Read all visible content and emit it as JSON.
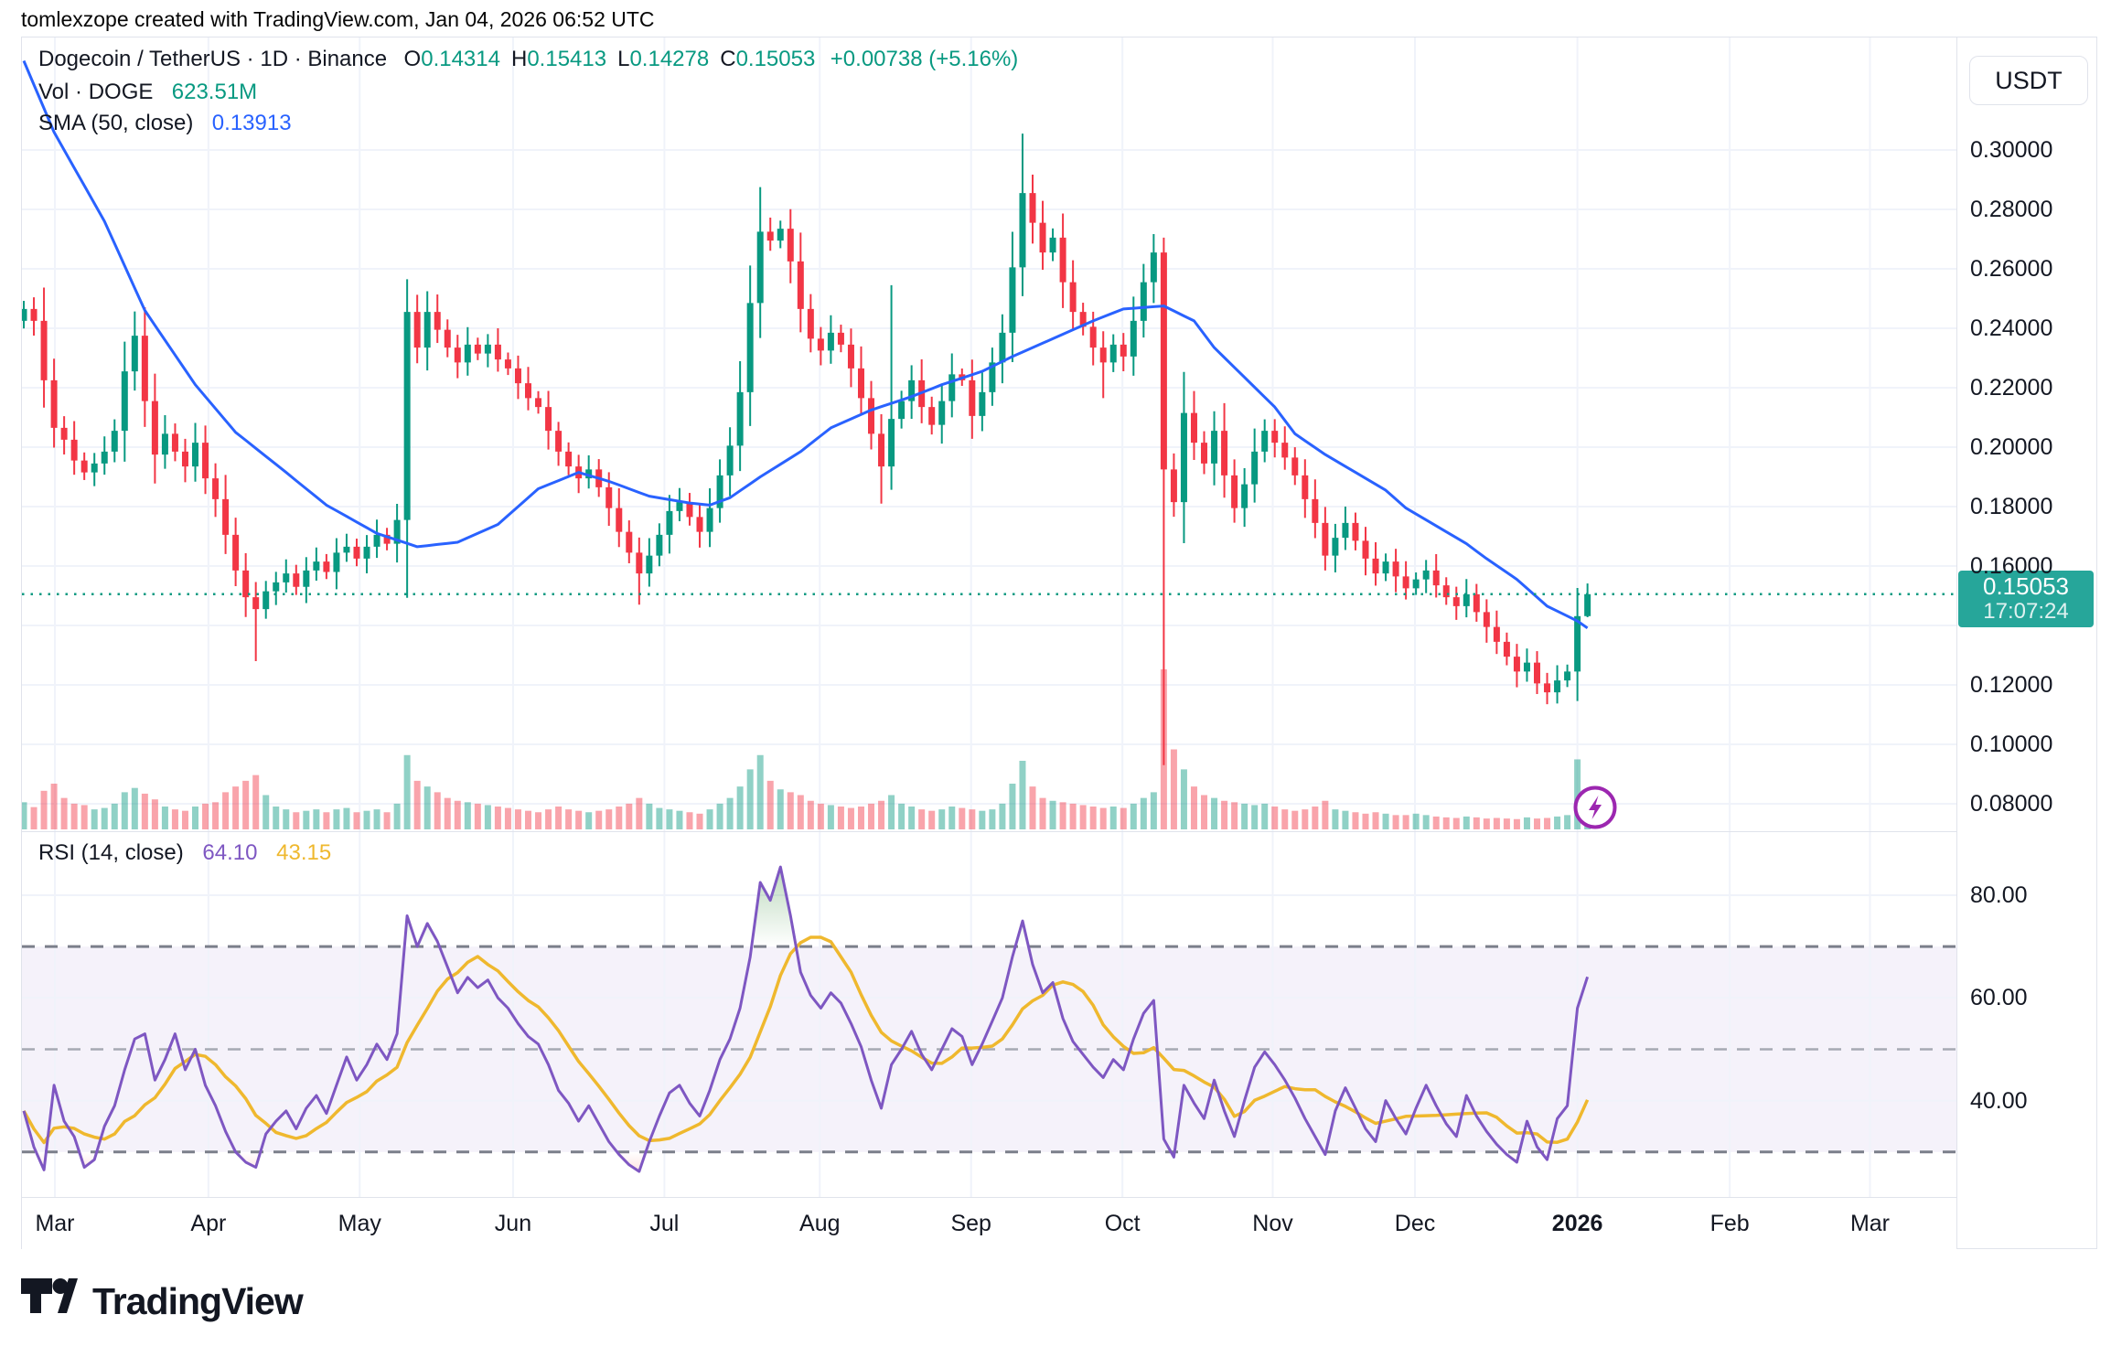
{
  "meta": {
    "attribution": "tomlexzope created with TradingView.com, Jan 04, 2026 06:52 UTC"
  },
  "header": {
    "symbol_line": "Dogecoin / TetherUS · 1D · Binance",
    "ohlc": [
      {
        "k": "O",
        "v": "0.14314"
      },
      {
        "k": "H",
        "v": "0.15413"
      },
      {
        "k": "L",
        "v": "0.14278"
      },
      {
        "k": "C",
        "v": "0.15053"
      }
    ],
    "change": "+0.00738 (+5.16%)",
    "vol_label": "Vol · DOGE",
    "vol_value": "623.51M",
    "sma_label": "SMA (50, close)",
    "sma_value": "0.13913"
  },
  "rsi_legend": {
    "label": "RSI (14, close)",
    "value": "64.10",
    "ma_value": "43.15"
  },
  "axis": {
    "currency": "USDT",
    "price_ticks": [
      "0.30000",
      "0.28000",
      "0.26000",
      "0.24000",
      "0.22000",
      "0.20000",
      "0.18000",
      "0.16000",
      "0.12000",
      "0.10000",
      "0.08000"
    ],
    "rsi_ticks": [
      "80.00",
      "60.00",
      "40.00"
    ],
    "price_flag": {
      "price": "0.15053",
      "time": "17:07:24"
    },
    "months": [
      {
        "label": "Mar",
        "pos": 3.08,
        "bold": false
      },
      {
        "label": "Apr",
        "pos": 18.3,
        "bold": false
      },
      {
        "label": "May",
        "pos": 33.3,
        "bold": false
      },
      {
        "label": "Jun",
        "pos": 48.5,
        "bold": false
      },
      {
        "label": "Jul",
        "pos": 63.5,
        "bold": false
      },
      {
        "label": "Aug",
        "pos": 78.9,
        "bold": false
      },
      {
        "label": "Sep",
        "pos": 93.9,
        "bold": false
      },
      {
        "label": "Oct",
        "pos": 108.9,
        "bold": false
      },
      {
        "label": "Nov",
        "pos": 123.8,
        "bold": false
      },
      {
        "label": "Dec",
        "pos": 137.9,
        "bold": false
      },
      {
        "label": "2026",
        "pos": 154.0,
        "bold": true
      },
      {
        "label": "Feb",
        "pos": 169.1,
        "bold": false
      },
      {
        "label": "Mar",
        "pos": 183.0,
        "bold": false
      }
    ]
  },
  "logo_text": "TradingView",
  "colors": {
    "up": "#089981",
    "down": "#f23645",
    "vol_up": "rgba(8,153,129,0.45)",
    "vol_down": "rgba(242,54,69,0.45)",
    "sma": "#2962ff",
    "rsi": "#7e57c2",
    "rsi_ma": "#efb82e",
    "grid": "#f0f3fa",
    "band": "rgba(126,87,194,0.08)",
    "dash_dark": "#7b7f8a",
    "dash_mid": "#a6a9b3",
    "price_flag_bg": "#26a69a",
    "accent_teal": "#089981",
    "text": "#131722"
  },
  "chart_data": {
    "type": "candlestick+volume+rsi",
    "title": "Dogecoin / TetherUS, 1D, Binance",
    "price_range": [
      0.08,
      0.3
    ],
    "rsi_levels": [
      70,
      50,
      30
    ],
    "current_price": 0.15053,
    "last_candle": {
      "open": 0.14314,
      "high": 0.15413,
      "low": 0.14278,
      "close": 0.15053
    },
    "volume_max_m": 5600,
    "first_open": 0.2425,
    "closes": [
      0.2465,
      0.2425,
      0.2225,
      0.2065,
      0.2025,
      0.1955,
      0.1915,
      0.1945,
      0.1985,
      0.2055,
      0.2255,
      0.2375,
      0.2155,
      0.1975,
      0.2045,
      0.1985,
      0.1935,
      0.2015,
      0.1895,
      0.1825,
      0.1705,
      0.1585,
      0.1495,
      0.1455,
      0.1515,
      0.1545,
      0.1575,
      0.153,
      0.1585,
      0.1615,
      0.158,
      0.1645,
      0.1665,
      0.1625,
      0.1665,
      0.1705,
      0.1675,
      0.1755,
      0.2455,
      0.2335,
      0.2455,
      0.2395,
      0.2335,
      0.2285,
      0.2345,
      0.2315,
      0.2345,
      0.2295,
      0.2265,
      0.2215,
      0.2165,
      0.2135,
      0.2055,
      0.1985,
      0.1935,
      0.1895,
      0.1925,
      0.1865,
      0.1795,
      0.1715,
      0.1645,
      0.1575,
      0.1635,
      0.1705,
      0.1785,
      0.1815,
      0.1765,
      0.1715,
      0.1795,
      0.1905,
      0.2005,
      0.2185,
      0.2485,
      0.2725,
      0.2695,
      0.2735,
      0.2625,
      0.2465,
      0.2365,
      0.2325,
      0.2385,
      0.2345,
      0.2265,
      0.2165,
      0.2045,
      0.1935,
      0.2095,
      0.2155,
      0.2225,
      0.2135,
      0.2075,
      0.2155,
      0.2245,
      0.2225,
      0.2105,
      0.2185,
      0.2285,
      0.2385,
      0.2605,
      0.2855,
      0.2755,
      0.2655,
      0.2705,
      0.2555,
      0.2455,
      0.2405,
      0.2335,
      0.2285,
      0.2345,
      0.2305,
      0.2425,
      0.2555,
      0.2655,
      0.1925,
      0.1815,
      0.2115,
      0.2015,
      0.1945,
      0.2055,
      0.1905,
      0.1795,
      0.1875,
      0.1985,
      0.2055,
      0.2015,
      0.1965,
      0.1905,
      0.1825,
      0.1745,
      0.1635,
      0.1695,
      0.1745,
      0.1685,
      0.1625,
      0.1575,
      0.1615,
      0.1565,
      0.1525,
      0.1555,
      0.1585,
      0.1535,
      0.1495,
      0.1465,
      0.1505,
      0.1445,
      0.1395,
      0.1345,
      0.1295,
      0.1245,
      0.1275,
      0.1205,
      0.1175,
      0.1215,
      0.1245,
      0.14314,
      0.15053
    ],
    "volumes_m": [
      950,
      780,
      1350,
      1600,
      1100,
      900,
      850,
      700,
      750,
      900,
      1300,
      1450,
      1250,
      1050,
      800,
      700,
      650,
      800,
      900,
      950,
      1300,
      1500,
      1700,
      1900,
      1200,
      800,
      700,
      600,
      650,
      700,
      600,
      700,
      750,
      600,
      650,
      700,
      600,
      900,
      2600,
      1700,
      1500,
      1300,
      1100,
      1000,
      950,
      900,
      850,
      800,
      750,
      700,
      650,
      600,
      700,
      800,
      700,
      650,
      600,
      650,
      700,
      800,
      900,
      1100,
      900,
      750,
      700,
      650,
      600,
      550,
      700,
      900,
      1100,
      1500,
      2100,
      2600,
      1700,
      1400,
      1300,
      1200,
      1000,
      900,
      850,
      800,
      750,
      800,
      900,
      1000,
      1200,
      900,
      800,
      700,
      650,
      700,
      800,
      750,
      700,
      650,
      700,
      900,
      1600,
      2400,
      1500,
      1100,
      1000,
      950,
      900,
      850,
      800,
      750,
      800,
      750,
      900,
      1100,
      1300,
      5600,
      2800,
      2100,
      1500,
      1200,
      1100,
      1000,
      950,
      900,
      850,
      900,
      800,
      700,
      650,
      700,
      800,
      1000,
      700,
      650,
      600,
      550,
      600,
      550,
      500,
      500,
      550,
      500,
      450,
      420,
      400,
      450,
      420,
      380,
      400,
      380,
      360,
      420,
      380,
      400,
      450,
      500,
      2450,
      623.51
    ],
    "rsi": [
      38,
      31,
      26.5,
      43,
      36,
      33,
      27,
      28.5,
      35,
      39,
      46,
      52,
      53,
      44,
      48,
      53,
      46,
      50,
      43,
      39,
      34,
      30,
      28,
      27,
      33.5,
      36,
      38,
      34.5,
      38.5,
      41,
      37.5,
      43,
      48.5,
      44,
      47,
      51,
      48,
      53,
      76,
      70,
      74.5,
      71,
      66,
      61,
      64,
      62,
      63.5,
      60,
      58,
      55,
      52.5,
      51,
      47,
      42,
      39.5,
      36,
      39,
      35.5,
      32,
      29.5,
      27.5,
      26.2,
      32,
      37,
      41.5,
      43,
      39.5,
      37,
      42,
      48,
      52,
      58,
      68,
      82.5,
      79,
      85.5,
      76,
      65,
      60.5,
      58,
      61,
      59,
      55,
      50.5,
      44,
      38.5,
      47,
      50,
      53.5,
      49,
      46,
      50,
      54,
      52.5,
      47,
      51,
      55.5,
      60,
      68,
      75,
      66.5,
      61,
      63,
      56,
      51.5,
      49,
      46.5,
      44.5,
      48,
      46,
      52,
      57,
      59.5,
      32.5,
      29,
      43,
      39.5,
      36.5,
      44,
      38,
      33,
      40,
      46.5,
      49.5,
      47,
      44,
      40.5,
      36.5,
      33,
      29.5,
      38,
      42.5,
      38.5,
      34.5,
      32,
      40,
      36.5,
      33.5,
      38.5,
      43,
      39,
      35.5,
      33,
      41,
      37,
      34,
      31.5,
      29.5,
      28,
      36,
      31,
      28.5,
      36.5,
      39,
      58,
      64.1
    ],
    "sma_anchors": [
      [
        0,
        0.33
      ],
      [
        3,
        0.306
      ],
      [
        8,
        0.276
      ],
      [
        12,
        0.246
      ],
      [
        17,
        0.221
      ],
      [
        21,
        0.205
      ],
      [
        26,
        0.1915
      ],
      [
        30,
        0.1805
      ],
      [
        35,
        0.171
      ],
      [
        39,
        0.1665
      ],
      [
        43,
        0.168
      ],
      [
        47,
        0.174
      ],
      [
        51,
        0.186
      ],
      [
        55,
        0.1915
      ],
      [
        58,
        0.1885
      ],
      [
        62,
        0.1835
      ],
      [
        66,
        0.1812
      ],
      [
        68,
        0.1805
      ],
      [
        70,
        0.183
      ],
      [
        73,
        0.19
      ],
      [
        77,
        0.1985
      ],
      [
        80,
        0.2065
      ],
      [
        84,
        0.2125
      ],
      [
        88,
        0.217
      ],
      [
        91,
        0.221
      ],
      [
        95,
        0.2255
      ],
      [
        98,
        0.2305
      ],
      [
        102,
        0.2365
      ],
      [
        106,
        0.2425
      ],
      [
        109,
        0.2465
      ],
      [
        113,
        0.2475
      ],
      [
        116,
        0.2425
      ],
      [
        118,
        0.2335
      ],
      [
        121,
        0.2235
      ],
      [
        124,
        0.2135
      ],
      [
        126,
        0.2045
      ],
      [
        129,
        0.1975
      ],
      [
        132,
        0.1915
      ],
      [
        135,
        0.1855
      ],
      [
        137,
        0.1795
      ],
      [
        140,
        0.1735
      ],
      [
        143,
        0.1675
      ],
      [
        145,
        0.1625
      ],
      [
        148,
        0.1555
      ],
      [
        151,
        0.1465
      ],
      [
        154,
        0.1415
      ],
      [
        155,
        0.13913
      ]
    ],
    "wick_overrides": {
      "23": [
        null,
        0.128
      ],
      "38": [
        0.2565,
        null
      ],
      "53": [
        0.2085,
        null
      ],
      "61": [
        null,
        0.147
      ],
      "73": [
        0.2875,
        null
      ],
      "85": [
        null,
        0.181
      ],
      "86": [
        0.2545,
        null
      ],
      "99": [
        0.3055,
        null
      ],
      "107": [
        null,
        0.2165
      ],
      "113": [
        0.2705,
        0.093
      ],
      "129": [
        null,
        0.1585
      ],
      "151": [
        null,
        0.1135
      ],
      "155": [
        0.15413,
        0.14278
      ]
    }
  }
}
